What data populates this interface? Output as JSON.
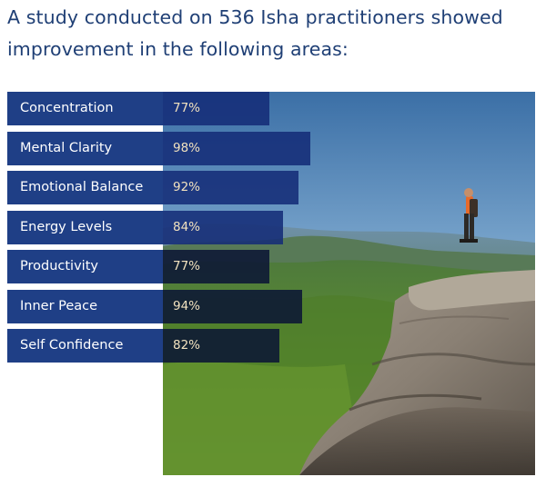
{
  "headline": {
    "line1": "A study conducted on 536 Isha practitioners showed",
    "line2": "improvement in the following areas:"
  },
  "colors": {
    "headline": "#1f3f75",
    "label_bg": "#1f3f86",
    "bar": "#142c78",
    "bar_dark": "#0a1434",
    "percent_text": "#f2e2bf"
  },
  "photo": {
    "description": "hiker-on-cliff-over-forest-valley"
  },
  "chart_data": {
    "type": "bar",
    "orientation": "horizontal",
    "categories": [
      "Concentration",
      "Mental Clarity",
      "Emotional Balance",
      "Energy Levels",
      "Productivity",
      "Inner Peace",
      "Self Confidence"
    ],
    "values": [
      77,
      98,
      92,
      84,
      77,
      94,
      82
    ],
    "value_labels": [
      "77%",
      "98%",
      "92%",
      "84%",
      "77%",
      "94%",
      "82%"
    ],
    "unit": "%",
    "xlim": [
      0,
      100
    ]
  }
}
